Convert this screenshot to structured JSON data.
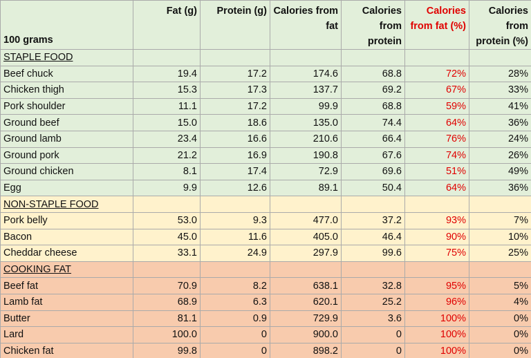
{
  "header": {
    "unit_label": "100 grams",
    "columns": [
      "Fat (g)",
      "Protein (g)",
      "Calories from fat",
      "Calories from protein",
      "Calories from fat (%)",
      "Calories from protein (%)"
    ]
  },
  "sections": [
    {
      "title": "STAPLE FOOD",
      "rows": [
        {
          "name": "Beef chuck",
          "fat": "19.4",
          "protein": "17.2",
          "cal_fat": "174.6",
          "cal_protein": "68.8",
          "pct_fat": "72%",
          "pct_protein": "28%"
        },
        {
          "name": "Chicken thigh",
          "fat": "15.3",
          "protein": "17.3",
          "cal_fat": "137.7",
          "cal_protein": "69.2",
          "pct_fat": "67%",
          "pct_protein": "33%"
        },
        {
          "name": "Pork shoulder",
          "fat": "11.1",
          "protein": "17.2",
          "cal_fat": "99.9",
          "cal_protein": "68.8",
          "pct_fat": "59%",
          "pct_protein": "41%"
        },
        {
          "name": "Ground beef",
          "fat": "15.0",
          "protein": "18.6",
          "cal_fat": "135.0",
          "cal_protein": "74.4",
          "pct_fat": "64%",
          "pct_protein": "36%"
        },
        {
          "name": "Ground lamb",
          "fat": "23.4",
          "protein": "16.6",
          "cal_fat": "210.6",
          "cal_protein": "66.4",
          "pct_fat": "76%",
          "pct_protein": "24%"
        },
        {
          "name": "Ground pork",
          "fat": "21.2",
          "protein": "16.9",
          "cal_fat": "190.8",
          "cal_protein": "67.6",
          "pct_fat": "74%",
          "pct_protein": "26%"
        },
        {
          "name": "Ground chicken",
          "fat": "8.1",
          "protein": "17.4",
          "cal_fat": "72.9",
          "cal_protein": "69.6",
          "pct_fat": "51%",
          "pct_protein": "49%"
        },
        {
          "name": "Egg",
          "fat": "9.9",
          "protein": "12.6",
          "cal_fat": "89.1",
          "cal_protein": "50.4",
          "pct_fat": "64%",
          "pct_protein": "36%"
        }
      ]
    },
    {
      "title": "NON-STAPLE FOOD",
      "rows": [
        {
          "name": "Pork belly",
          "fat": "53.0",
          "protein": "9.3",
          "cal_fat": "477.0",
          "cal_protein": "37.2",
          "pct_fat": "93%",
          "pct_protein": "7%"
        },
        {
          "name": "Bacon",
          "fat": "45.0",
          "protein": "11.6",
          "cal_fat": "405.0",
          "cal_protein": "46.4",
          "pct_fat": "90%",
          "pct_protein": "10%"
        },
        {
          "name": "Cheddar cheese",
          "fat": "33.1",
          "protein": "24.9",
          "cal_fat": "297.9",
          "cal_protein": "99.6",
          "pct_fat": "75%",
          "pct_protein": "25%"
        }
      ]
    },
    {
      "title": "COOKING FAT",
      "rows": [
        {
          "name": "Beef fat",
          "fat": "70.9",
          "protein": "8.2",
          "cal_fat": "638.1",
          "cal_protein": "32.8",
          "pct_fat": "95%",
          "pct_protein": "5%"
        },
        {
          "name": "Lamb fat",
          "fat": "68.9",
          "protein": "6.3",
          "cal_fat": "620.1",
          "cal_protein": "25.2",
          "pct_fat": "96%",
          "pct_protein": "4%"
        },
        {
          "name": "Butter",
          "fat": "81.1",
          "protein": "0.9",
          "cal_fat": "729.9",
          "cal_protein": "3.6",
          "pct_fat": "100%",
          "pct_protein": "0%"
        },
        {
          "name": "Lard",
          "fat": "100.0",
          "protein": "0",
          "cal_fat": "900.0",
          "cal_protein": "0",
          "pct_fat": "100%",
          "pct_protein": "0%"
        },
        {
          "name": "Chicken fat",
          "fat": "99.8",
          "protein": "0",
          "cal_fat": "898.2",
          "cal_protein": "0",
          "pct_fat": "100%",
          "pct_protein": "0%"
        }
      ]
    }
  ],
  "colors": {
    "staple_bg": "#e2efda",
    "nonstaple_bg": "#fff2cc",
    "cooking_fat_bg": "#f8cbad",
    "highlight_text": "#e00000"
  }
}
